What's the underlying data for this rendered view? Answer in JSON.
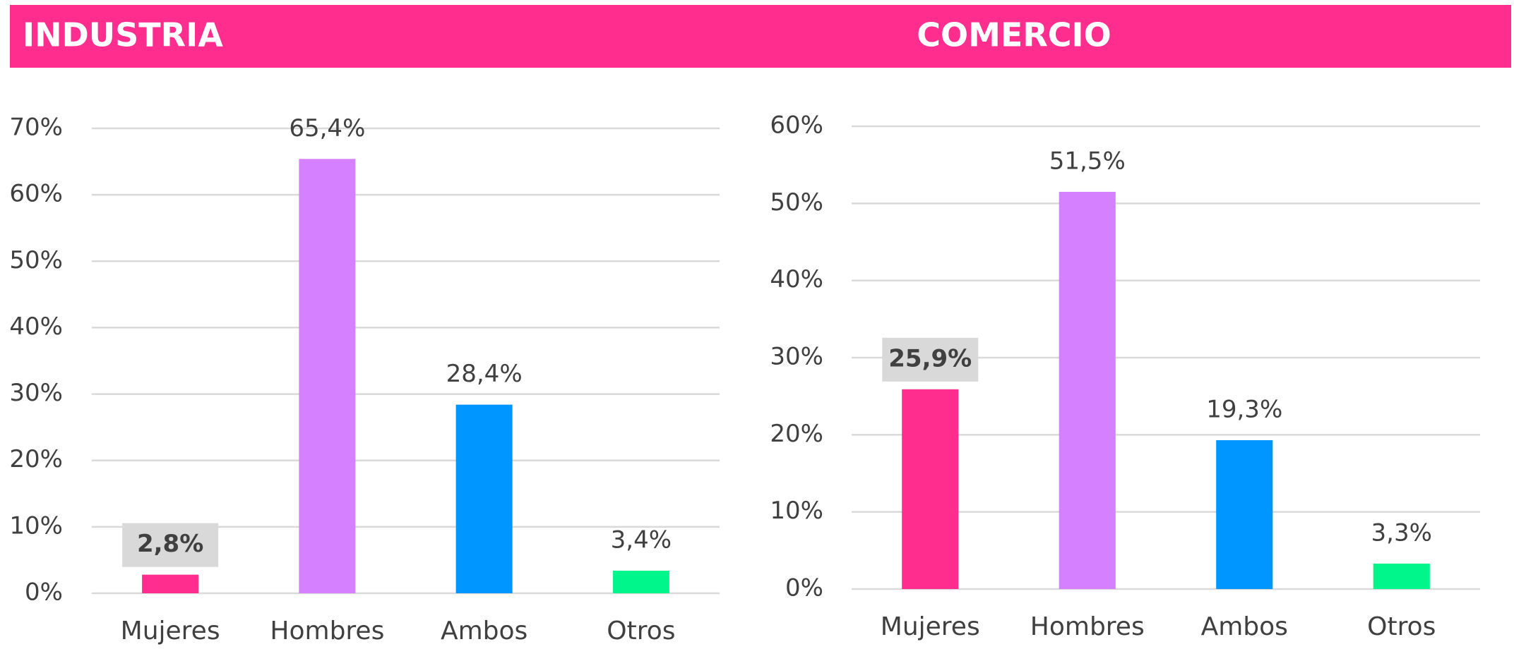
{
  "chart_data": [
    {
      "type": "bar",
      "title": "INDUSTRIA",
      "categories": [
        "Mujeres",
        "Hombres",
        "Ambos",
        "Otros"
      ],
      "values": [
        2.8,
        65.4,
        28.4,
        3.4
      ],
      "value_labels": [
        "2,8%",
        "65,4%",
        "28,4%",
        "3,4%"
      ],
      "colors": [
        "#ff2d8e",
        "#d580ff",
        "#0096ff",
        "#00f58a"
      ],
      "highlight": 0,
      "ylim": [
        0,
        70
      ],
      "yticks": [
        {
          "value": 0,
          "label": "0%"
        },
        {
          "value": 10,
          "label": "10%"
        },
        {
          "value": 20,
          "label": "20%"
        },
        {
          "value": 30,
          "label": "30%"
        },
        {
          "value": 40,
          "label": "40%"
        },
        {
          "value": 50,
          "label": "50%"
        },
        {
          "value": 60,
          "label": "60%"
        },
        {
          "value": 70,
          "label": "70%"
        }
      ],
      "grid": true
    },
    {
      "type": "bar",
      "title": "COMERCIO",
      "categories": [
        "Mujeres",
        "Hombres",
        "Ambos",
        "Otros"
      ],
      "values": [
        25.9,
        51.5,
        19.3,
        3.3
      ],
      "value_labels": [
        "25,9%",
        "51,5%",
        "19,3%",
        "3,3%"
      ],
      "colors": [
        "#ff2d8e",
        "#d580ff",
        "#0096ff",
        "#00f58a"
      ],
      "highlight": 0,
      "ylim": [
        0,
        60
      ],
      "yticks": [
        {
          "value": 0,
          "label": "0%"
        },
        {
          "value": 10,
          "label": "10%"
        },
        {
          "value": 20,
          "label": "20%"
        },
        {
          "value": 30,
          "label": "30%"
        },
        {
          "value": 40,
          "label": "40%"
        },
        {
          "value": 50,
          "label": "50%"
        },
        {
          "value": 60,
          "label": "60%"
        }
      ],
      "grid": true
    }
  ]
}
